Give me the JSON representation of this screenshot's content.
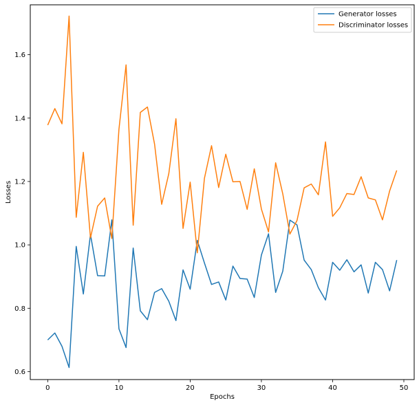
{
  "chart_data": {
    "type": "line",
    "title": "",
    "xlabel": "Epochs",
    "ylabel": "Losses",
    "xlim": [
      -2.45,
      51.45
    ],
    "ylim": [
      0.575,
      1.7575
    ],
    "xticks": [
      0,
      10,
      20,
      30,
      40,
      50
    ],
    "yticks": [
      0.6,
      0.8,
      1.0,
      1.2,
      1.4,
      1.6
    ],
    "xtick_labels": [
      "0",
      "10",
      "20",
      "30",
      "40",
      "50"
    ],
    "ytick_labels": [
      "0.6",
      "0.8",
      "1.0",
      "1.2",
      "1.4",
      "1.6"
    ],
    "grid": false,
    "legend_position": "top-right",
    "x": [
      0,
      1,
      2,
      3,
      4,
      5,
      6,
      7,
      8,
      9,
      10,
      11,
      12,
      13,
      14,
      15,
      16,
      17,
      18,
      19,
      20,
      21,
      22,
      23,
      24,
      25,
      26,
      27,
      28,
      29,
      30,
      31,
      32,
      33,
      34,
      35,
      36,
      37,
      38,
      39,
      40,
      41,
      42,
      43,
      44,
      45,
      46,
      47,
      48,
      49
    ],
    "series": [
      {
        "name": "Generator losses",
        "color": "#1f77b4",
        "values": [
          0.7,
          0.722,
          0.68,
          0.613,
          0.995,
          0.845,
          1.033,
          0.903,
          0.902,
          1.079,
          0.735,
          0.676,
          0.99,
          0.792,
          0.764,
          0.85,
          0.862,
          0.822,
          0.761,
          0.921,
          0.86,
          1.014,
          0.943,
          0.875,
          0.883,
          0.826,
          0.933,
          0.894,
          0.892,
          0.834,
          0.968,
          1.035,
          0.85,
          0.917,
          1.078,
          1.063,
          0.952,
          0.922,
          0.865,
          0.826,
          0.945,
          0.92,
          0.953,
          0.915,
          0.937,
          0.848,
          0.945,
          0.922,
          0.855,
          0.952
        ]
      },
      {
        "name": "Discriminator losses",
        "color": "#ff7f0e",
        "values": [
          1.378,
          1.43,
          1.382,
          1.722,
          1.087,
          1.292,
          1.022,
          1.122,
          1.148,
          1.02,
          1.365,
          1.568,
          1.062,
          1.418,
          1.435,
          1.318,
          1.128,
          1.225,
          1.398,
          1.052,
          1.198,
          0.975,
          1.21,
          1.313,
          1.181,
          1.286,
          1.199,
          1.2,
          1.112,
          1.24,
          1.113,
          1.041,
          1.259,
          1.161,
          1.034,
          1.077,
          1.18,
          1.192,
          1.158,
          1.325,
          1.09,
          1.117,
          1.162,
          1.159,
          1.215,
          1.148,
          1.142,
          1.079,
          1.17,
          1.235
        ]
      }
    ]
  }
}
